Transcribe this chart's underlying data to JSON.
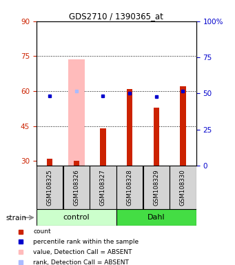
{
  "title": "GDS2710 / 1390365_at",
  "samples": [
    "GSM108325",
    "GSM108326",
    "GSM108327",
    "GSM108328",
    "GSM108329",
    "GSM108330"
  ],
  "red_values": [
    31,
    30,
    44,
    61,
    53,
    62
  ],
  "blue_values": [
    58,
    60,
    58,
    59,
    57.5,
    60
  ],
  "absent_red": [
    null,
    73.5,
    null,
    null,
    null,
    null
  ],
  "absent_blue": [
    null,
    60,
    null,
    null,
    null,
    null
  ],
  "ylim_left": [
    28,
    90
  ],
  "ylim_right": [
    0,
    100
  ],
  "yticks_left": [
    30,
    45,
    60,
    75,
    90
  ],
  "yticks_right": [
    0,
    25,
    50,
    75,
    100
  ],
  "yticklabels_right": [
    "0",
    "25",
    "50",
    "75",
    "100%"
  ],
  "hlines": [
    45,
    60,
    75
  ],
  "bar_color": "#cc2200",
  "absent_bar_color": "#ffbbbb",
  "dot_color": "#0000cc",
  "absent_dot_color": "#aabbff",
  "left_axis_color": "#cc2200",
  "right_axis_color": "#0000cc",
  "group_defs": [
    {
      "name": "control",
      "start": 0,
      "end": 2,
      "color": "#ccffcc"
    },
    {
      "name": "Dahl",
      "start": 3,
      "end": 5,
      "color": "#44dd44"
    }
  ],
  "legend": [
    {
      "color": "#cc2200",
      "label": "count"
    },
    {
      "color": "#0000cc",
      "label": "percentile rank within the sample"
    },
    {
      "color": "#ffbbbb",
      "label": "value, Detection Call = ABSENT"
    },
    {
      "color": "#aabbff",
      "label": "rank, Detection Call = ABSENT"
    }
  ]
}
